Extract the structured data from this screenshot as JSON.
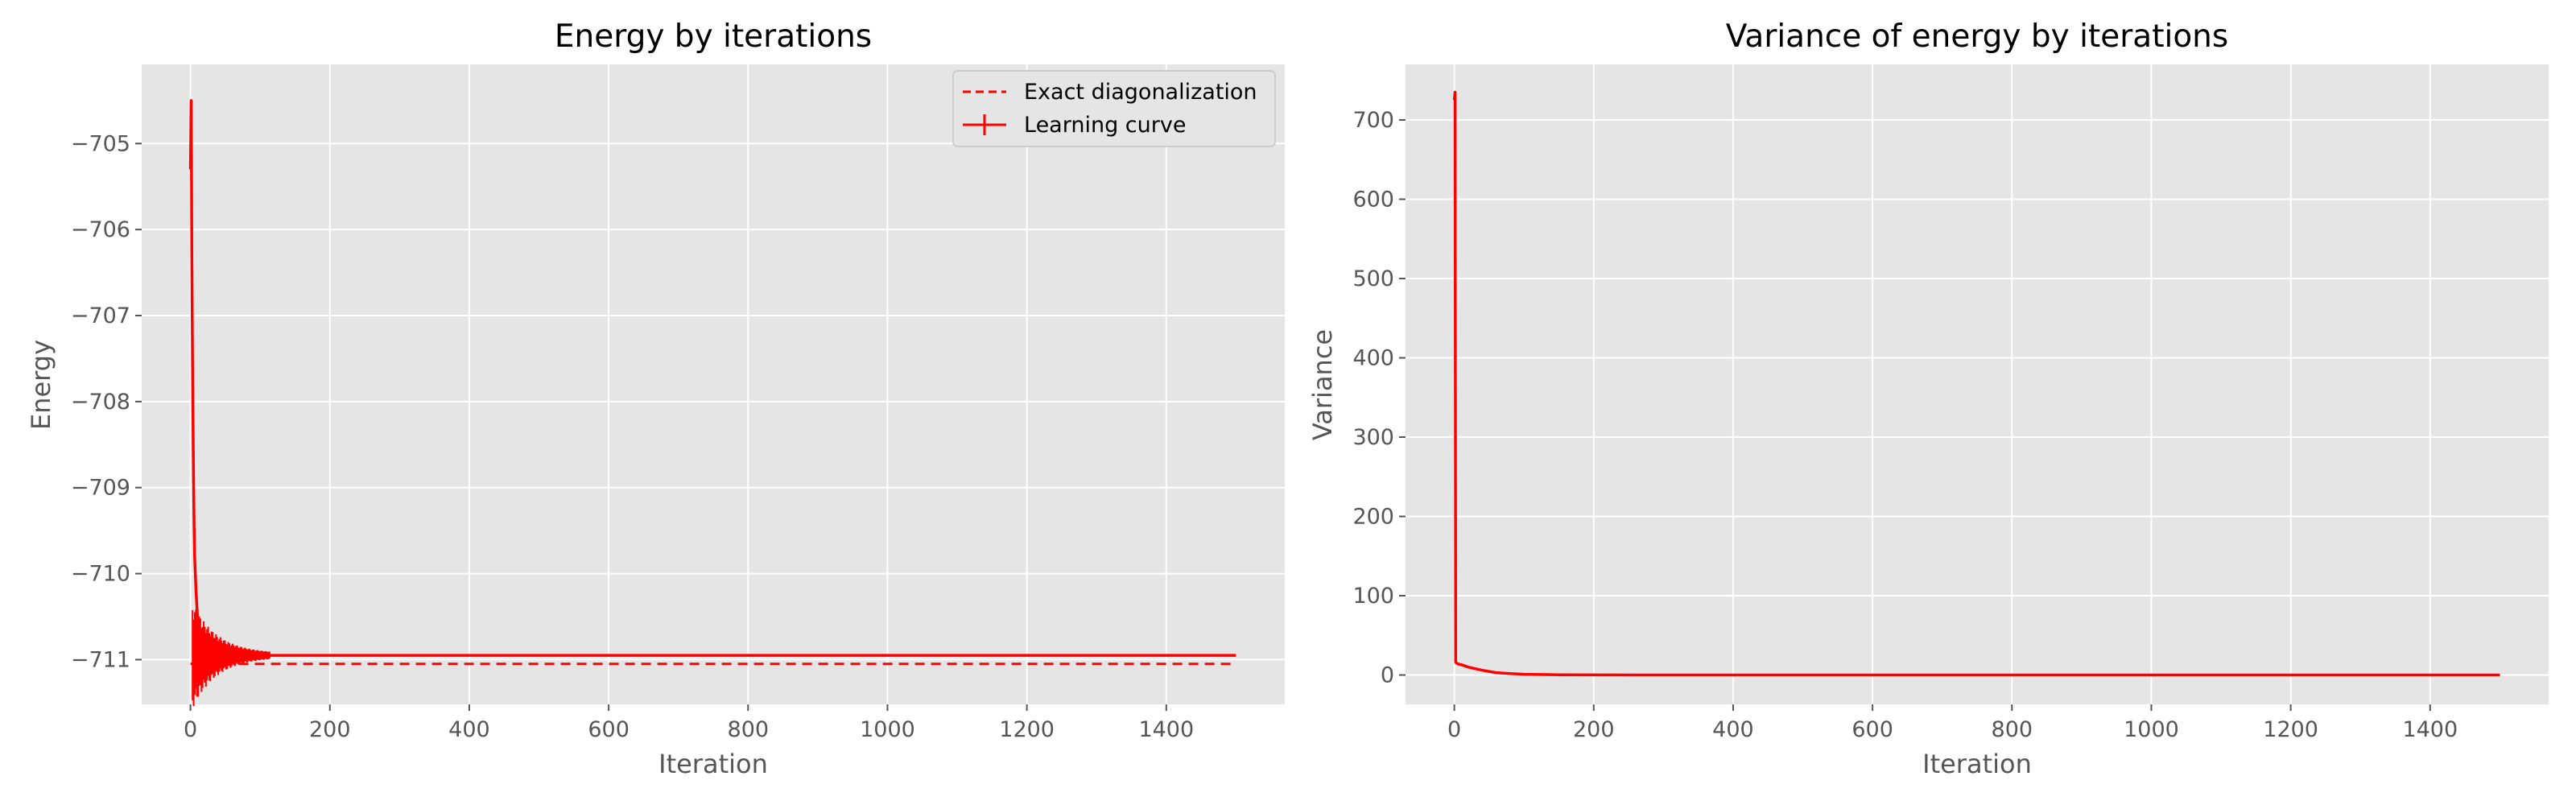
{
  "chart_data": [
    {
      "type": "line",
      "title": "Energy by iterations",
      "xlabel": "Iteration",
      "ylabel": "Energy",
      "xlim": [
        -70,
        1570
      ],
      "ylim": [
        -711.52,
        -704.08
      ],
      "xticks": [
        0,
        200,
        400,
        600,
        800,
        1000,
        1200,
        1400
      ],
      "yticks": [
        -711,
        -710,
        -709,
        -708,
        -707,
        -706,
        -705
      ],
      "xtick_labels": [
        "0",
        "200",
        "400",
        "600",
        "800",
        "1000",
        "1200",
        "1400"
      ],
      "ytick_labels": [
        "−711",
        "−710",
        "−709",
        "−708",
        "−707",
        "−706",
        "−705"
      ],
      "grid": true,
      "legend_position": "top-right",
      "series": [
        {
          "name": "Exact diagonalization",
          "style": "dashed",
          "color": "#ff0000",
          "x": [
            0,
            1500
          ],
          "y": [
            -711.05,
            -711.05
          ]
        },
        {
          "name": "Learning curve",
          "style": "solid-with-errorbars",
          "color": "#ff0000",
          "x": [
            0,
            1,
            2,
            3,
            4,
            5,
            6,
            8,
            10,
            12,
            15,
            20,
            25,
            30,
            40,
            50,
            60,
            70,
            80,
            100,
            120,
            150,
            200,
            300,
            500,
            800,
            1000,
            1500
          ],
          "y": [
            -705.3,
            -704.5,
            -706.3,
            -707.6,
            -708.6,
            -709.3,
            -709.8,
            -710.2,
            -710.5,
            -710.7,
            -710.8,
            -710.85,
            -710.88,
            -710.9,
            -710.92,
            -710.93,
            -710.94,
            -710.94,
            -710.95,
            -710.95,
            -710.95,
            -710.95,
            -710.95,
            -710.95,
            -710.95,
            -710.95,
            -710.95,
            -710.95
          ]
        }
      ]
    },
    {
      "type": "line",
      "title": "Variance of energy by iterations",
      "xlabel": "Iteration",
      "ylabel": "Variance",
      "xlim": [
        -70,
        1570
      ],
      "ylim": [
        -37,
        770
      ],
      "xticks": [
        0,
        200,
        400,
        600,
        800,
        1000,
        1200,
        1400
      ],
      "yticks": [
        0,
        100,
        200,
        300,
        400,
        500,
        600,
        700
      ],
      "xtick_labels": [
        "0",
        "200",
        "400",
        "600",
        "800",
        "1000",
        "1200",
        "1400"
      ],
      "ytick_labels": [
        "0",
        "100",
        "200",
        "300",
        "400",
        "500",
        "600",
        "700"
      ],
      "grid": true,
      "series": [
        {
          "color": "#ff0000",
          "x": [
            0,
            1,
            2,
            5,
            10,
            20,
            30,
            40,
            50,
            60,
            80,
            100,
            150,
            200,
            300,
            500,
            800,
            1000,
            1500
          ],
          "y": [
            725,
            735,
            16,
            14,
            13,
            10,
            8,
            6,
            4.5,
            3,
            1.8,
            1,
            0.4,
            0.2,
            0.1,
            0.05,
            0.05,
            0.05,
            0.05
          ]
        }
      ]
    }
  ]
}
